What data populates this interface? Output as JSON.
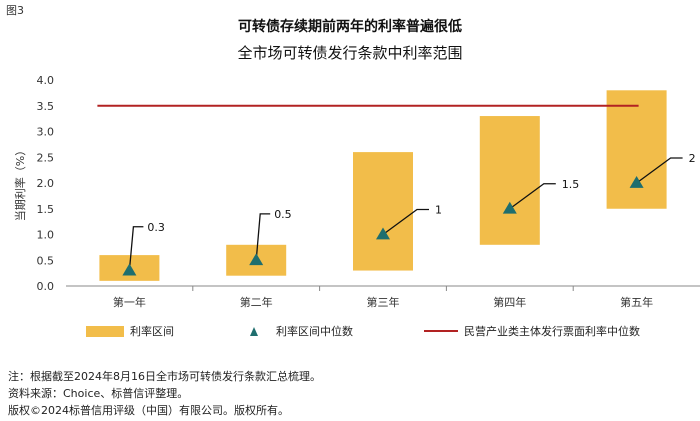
{
  "figure_label": "图3",
  "chart_data": {
    "type": "bar",
    "title": "可转债存续期前两年的利率普遍很低",
    "subtitle": "全市场可转债发行条款中利率范围",
    "ylabel": "当期利率（%）",
    "xlabel": "",
    "ylim": [
      0.0,
      4.0
    ],
    "yticks": [
      "0.0",
      "0.5",
      "1.0",
      "1.5",
      "2.0",
      "2.5",
      "3.0",
      "3.5",
      "4.0"
    ],
    "categories": [
      "第一年",
      "第二年",
      "第三年",
      "第四年",
      "第五年"
    ],
    "range_series": {
      "name": "利率区间",
      "low": [
        0.1,
        0.2,
        0.3,
        0.8,
        1.5
      ],
      "high": [
        0.6,
        0.8,
        2.6,
        3.3,
        3.8
      ]
    },
    "median_series": {
      "name": "利率区间中位数",
      "values": [
        0.3,
        0.5,
        1.0,
        1.5,
        2.0
      ],
      "labels": [
        "0.3",
        "0.5",
        "1",
        "1.5",
        "2"
      ]
    },
    "reference_line": {
      "name": "民营产业类主体发行票面利率中位数",
      "value": 3.5
    },
    "grid": false,
    "legend_position": "bottom",
    "colors": {
      "range": "#F2BD4A",
      "median": "#1F6E6E",
      "reference": "#B22222",
      "leader": "#111111",
      "axis": "#888888"
    }
  },
  "notes": [
    "注：根据截至2024年8月16日全市场可转债发行条款汇总梳理。",
    "资料来源：Choice、标普信评整理。",
    "版权©2024标普信用评级（中国）有限公司。版权所有。"
  ]
}
